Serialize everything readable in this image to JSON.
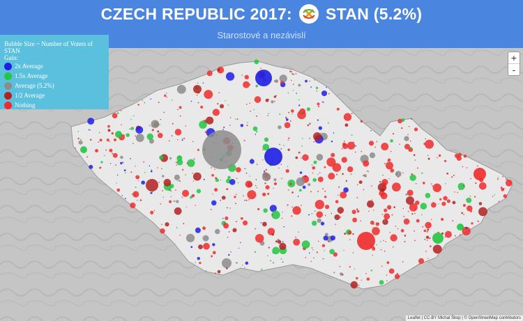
{
  "header": {
    "title_prefix": "CZECH REPUBLIC 2017:",
    "logo_text": "STAROSTOVÉ NEZÁVISLÍ",
    "title_suffix": "STAN (5.2%)",
    "subtitle": "Starostové a nezávislí"
  },
  "legend": {
    "title": "Bubble Size ~ Number of Voters of STAN",
    "gain_label": "Gain:",
    "items": [
      {
        "label": "2x Average",
        "color": "#1f1fe6"
      },
      {
        "label": "1.5x Average",
        "color": "#22c742"
      },
      {
        "label": "Average (5.2%)",
        "color": "#8c8c8c"
      },
      {
        "label": "1/2 Average",
        "color": "#b22222"
      },
      {
        "label": "Nothing",
        "color": "#ee2b2b"
      }
    ]
  },
  "zoom": {
    "in": "+",
    "out": "-"
  },
  "attribution": "Leaflet | CC-BY Michal Škop | © OpenStreetMap contributors"
}
